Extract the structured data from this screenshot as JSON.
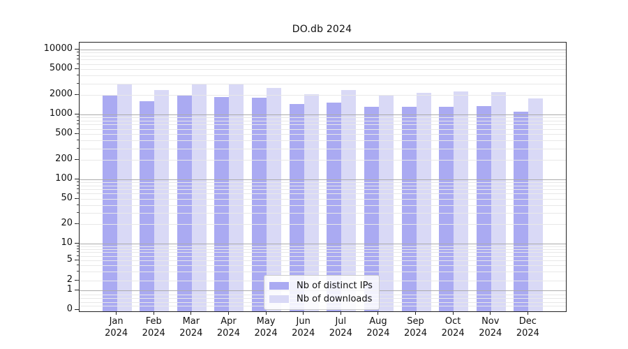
{
  "title": "DO.db 2024",
  "legend": {
    "items": [
      {
        "label": "Nb of distinct IPs",
        "color": "#aaaaf2"
      },
      {
        "label": "Nb of downloads",
        "color": "#d9d9f6"
      }
    ]
  },
  "chart_data": {
    "type": "bar",
    "title": "DO.db 2024",
    "categories": [
      "Jan",
      "Feb",
      "Mar",
      "Apr",
      "May",
      "Jun",
      "Jul",
      "Aug",
      "Sep",
      "Oct",
      "Nov",
      "Dec"
    ],
    "year_label": "2024",
    "series": [
      {
        "name": "Nb of distinct IPs",
        "color": "#aaaaf2",
        "values": [
          1960,
          1600,
          1990,
          1850,
          1800,
          1440,
          1510,
          1310,
          1310,
          1320,
          1350,
          1100
        ]
      },
      {
        "name": "Nb of downloads",
        "color": "#d9d9f6",
        "values": [
          2940,
          2400,
          2880,
          2890,
          2550,
          2050,
          2350,
          1950,
          2130,
          2240,
          2200,
          1750
        ]
      }
    ],
    "xlabel": "",
    "ylabel": "",
    "yscale": "symlog",
    "ylim": [
      0,
      12600
    ],
    "grid": "both",
    "legend_position": "lower center",
    "y_ticks": [
      {
        "value": 10000,
        "label": "10000"
      },
      {
        "value": 5000,
        "label": "5000"
      },
      {
        "value": 2000,
        "label": "2000"
      },
      {
        "value": 1000,
        "label": "1000"
      },
      {
        "value": 500,
        "label": "500"
      },
      {
        "value": 200,
        "label": "200"
      },
      {
        "value": 100,
        "label": "100"
      },
      {
        "value": 50,
        "label": "50"
      },
      {
        "value": 20,
        "label": "20"
      },
      {
        "value": 10,
        "label": "10"
      },
      {
        "value": 5,
        "label": "5"
      },
      {
        "value": 2,
        "label": "2"
      },
      {
        "value": 1,
        "label": "1"
      },
      {
        "value": 0,
        "label": "0"
      }
    ],
    "y_anchors": [
      [
        0,
        383
      ],
      [
        1,
        355
      ],
      [
        2,
        340.5
      ],
      [
        5,
        312
      ],
      [
        10,
        288
      ],
      [
        100,
        196
      ],
      [
        1000,
        103
      ],
      [
        10000,
        10
      ]
    ],
    "colors": {
      "grid_major": "#ababab",
      "grid_minor": "#e8e8e8",
      "axis": "#222222"
    }
  }
}
